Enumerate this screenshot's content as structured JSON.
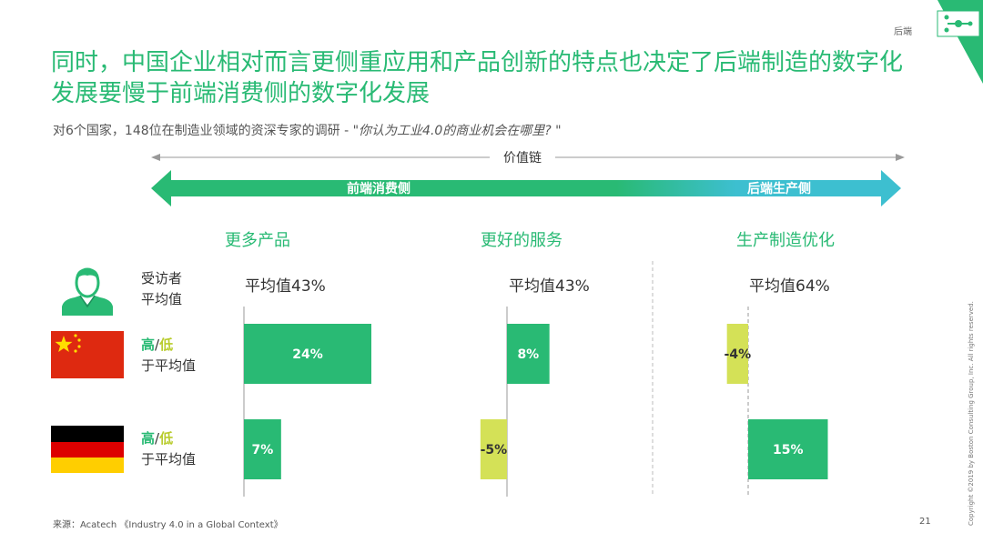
{
  "header": {
    "tag": "后端",
    "title": "同时，中国企业相对而言更侧重应用和产品创新的特点也决定了后端制造的数字化发展要慢于前端消费侧的数字化发展",
    "subtitle_prefix": "对6个国家，148位在制造业领域的资深专家的调研 - ",
    "subtitle_quote": "\"你认为工业4.0的商业机会在哪里? \""
  },
  "value_chain": {
    "label": "价值链",
    "left_label": "前端消费侧",
    "right_label": "后端生产侧"
  },
  "rows": [
    {
      "label_line1": "受访者",
      "label_line2": "平均值"
    },
    {
      "hi": "高",
      "sep": "/",
      "lo": "低",
      "label_line2": "于平均值"
    },
    {
      "hi": "高",
      "sep": "/",
      "lo": "低",
      "label_line2": "于平均值"
    }
  ],
  "chart_data": {
    "type": "bar",
    "orientation": "horizontal",
    "categories": [
      "更多产品",
      "更好的服务",
      "生产制造优化"
    ],
    "averages": [
      "平均值43%",
      "平均值43%",
      "平均值64%"
    ],
    "series": [
      {
        "values": [
          24,
          8,
          -4
        ],
        "labels": [
          "24%",
          "8%",
          "-4%"
        ]
      },
      {
        "values": [
          7,
          -5,
          15
        ],
        "labels": [
          "7%",
          "-5%",
          "15%"
        ]
      }
    ],
    "colors": {
      "positive": "#29ba74",
      "negative": "#d4e157"
    }
  },
  "footer": {
    "source": "来源：Acatech 《Industry 4.0 in a Global Context》",
    "page": "21",
    "copyright": "Copyright ©2019 by Boston Consulting Group, Inc. All rights reserved."
  },
  "colors": {
    "accent": "#29ba74",
    "teal": "#3dbfd0",
    "lime": "#d4e157"
  }
}
